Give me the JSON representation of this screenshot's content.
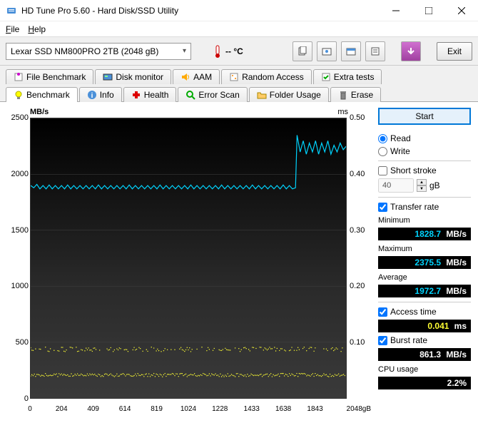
{
  "window": {
    "title": "HD Tune Pro 5.60 - Hard Disk/SSD Utility"
  },
  "menubar": {
    "file": "File",
    "help": "Help"
  },
  "toolbar": {
    "device": "Lexar SSD NM800PRO 2TB (2048 gB)",
    "temp": "-- °C",
    "exit": "Exit"
  },
  "tabs_row1": [
    {
      "label": "File Benchmark",
      "icon": "file-bench"
    },
    {
      "label": "Disk monitor",
      "icon": "monitor"
    },
    {
      "label": "AAM",
      "icon": "speaker"
    },
    {
      "label": "Random Access",
      "icon": "random"
    },
    {
      "label": "Extra tests",
      "icon": "extra"
    }
  ],
  "tabs_row2": [
    {
      "label": "Benchmark",
      "icon": "bulb",
      "active": true
    },
    {
      "label": "Info",
      "icon": "info"
    },
    {
      "label": "Health",
      "icon": "health"
    },
    {
      "label": "Error Scan",
      "icon": "search"
    },
    {
      "label": "Folder Usage",
      "icon": "folder"
    },
    {
      "label": "Erase",
      "icon": "trash"
    }
  ],
  "chart": {
    "ylabel_left": "MB/s",
    "ylabel_right": "ms",
    "y_left_max": 2500,
    "y_left_step": 500,
    "y_left_min": 0,
    "y_left_ticks": [
      2500,
      2000,
      1500,
      1000,
      500,
      0
    ],
    "y_right_ticks": [
      "0.50",
      "0.40",
      "0.30",
      "0.20",
      "0.10"
    ],
    "x_ticks": [
      0,
      204,
      409,
      614,
      819,
      1024,
      1228,
      1433,
      1638,
      1843
    ],
    "x_max": 2048,
    "x_unit": "2048gB",
    "transfer_color": "#00d4ff",
    "access_color": "#ffff33",
    "transfer_series": [
      [
        0,
        1900
      ],
      [
        20,
        1880
      ],
      [
        40,
        1910
      ],
      [
        60,
        1870
      ],
      [
        80,
        1900
      ],
      [
        100,
        1870
      ],
      [
        120,
        1905
      ],
      [
        140,
        1870
      ],
      [
        160,
        1900
      ],
      [
        180,
        1870
      ],
      [
        200,
        1900
      ],
      [
        220,
        1870
      ],
      [
        240,
        1905
      ],
      [
        260,
        1870
      ],
      [
        280,
        1900
      ],
      [
        300,
        1870
      ],
      [
        320,
        1900
      ],
      [
        340,
        1870
      ],
      [
        360,
        1900
      ],
      [
        380,
        1870
      ],
      [
        400,
        1900
      ],
      [
        420,
        1870
      ],
      [
        440,
        1905
      ],
      [
        460,
        1870
      ],
      [
        480,
        1900
      ],
      [
        500,
        1870
      ],
      [
        520,
        1900
      ],
      [
        540,
        1870
      ],
      [
        560,
        1900
      ],
      [
        580,
        1870
      ],
      [
        600,
        1900
      ],
      [
        620,
        1870
      ],
      [
        640,
        1905
      ],
      [
        660,
        1870
      ],
      [
        680,
        1900
      ],
      [
        700,
        1870
      ],
      [
        720,
        1900
      ],
      [
        740,
        1870
      ],
      [
        760,
        1900
      ],
      [
        780,
        1870
      ],
      [
        800,
        1900
      ],
      [
        820,
        1870
      ],
      [
        840,
        1905
      ],
      [
        860,
        1870
      ],
      [
        880,
        1900
      ],
      [
        900,
        1870
      ],
      [
        920,
        1900
      ],
      [
        940,
        1870
      ],
      [
        960,
        1900
      ],
      [
        980,
        1870
      ],
      [
        1000,
        1900
      ],
      [
        1020,
        1870
      ],
      [
        1040,
        1905
      ],
      [
        1060,
        1870
      ],
      [
        1080,
        1900
      ],
      [
        1100,
        1870
      ],
      [
        1120,
        1900
      ],
      [
        1140,
        1870
      ],
      [
        1160,
        1900
      ],
      [
        1180,
        1870
      ],
      [
        1200,
        1900
      ],
      [
        1220,
        1870
      ],
      [
        1240,
        1905
      ],
      [
        1260,
        1870
      ],
      [
        1280,
        1900
      ],
      [
        1300,
        1870
      ],
      [
        1320,
        1900
      ],
      [
        1340,
        1870
      ],
      [
        1360,
        1900
      ],
      [
        1380,
        1870
      ],
      [
        1400,
        1900
      ],
      [
        1420,
        1870
      ],
      [
        1440,
        1905
      ],
      [
        1460,
        1870
      ],
      [
        1480,
        1900
      ],
      [
        1500,
        1870
      ],
      [
        1520,
        1900
      ],
      [
        1540,
        1870
      ],
      [
        1560,
        1900
      ],
      [
        1580,
        1870
      ],
      [
        1600,
        1900
      ],
      [
        1620,
        1870
      ],
      [
        1640,
        1905
      ],
      [
        1660,
        1870
      ],
      [
        1680,
        1900
      ],
      [
        1700,
        1870
      ],
      [
        1720,
        1880
      ],
      [
        1730,
        2350
      ],
      [
        1750,
        2200
      ],
      [
        1770,
        2300
      ],
      [
        1790,
        2180
      ],
      [
        1810,
        2280
      ],
      [
        1830,
        2200
      ],
      [
        1850,
        2300
      ],
      [
        1870,
        2180
      ],
      [
        1890,
        2280
      ],
      [
        1910,
        2200
      ],
      [
        1930,
        2300
      ],
      [
        1950,
        2180
      ],
      [
        1970,
        2260
      ],
      [
        1990,
        2200
      ],
      [
        2010,
        2280
      ],
      [
        2030,
        2220
      ],
      [
        2048,
        2250
      ]
    ],
    "access_points_y": [
      0.087,
      0.091,
      0.085,
      0.093,
      0.088,
      0.09,
      0.086,
      0.092,
      0.089,
      0.087,
      0.091,
      0.085,
      0.093,
      0.088,
      0.09,
      0.086,
      0.092,
      0.089,
      0.087,
      0.091
    ],
    "access_band2_y": [
      0.041,
      0.043,
      0.039,
      0.044,
      0.04,
      0.042,
      0.038,
      0.045,
      0.041,
      0.043,
      0.039,
      0.044,
      0.04,
      0.042,
      0.038,
      0.045,
      0.041,
      0.043,
      0.039,
      0.044
    ]
  },
  "sidebar": {
    "start": "Start",
    "read": "Read",
    "write": "Write",
    "short_stroke": "Short stroke",
    "stroke_value": "40",
    "stroke_unit": "gB",
    "transfer_rate": "Transfer rate",
    "minimum_label": "Minimum",
    "minimum_val": "1828.7",
    "minimum_unit": "MB/s",
    "minimum_color": "#00d4ff",
    "maximum_label": "Maximum",
    "maximum_val": "2375.5",
    "maximum_unit": "MB/s",
    "maximum_color": "#00d4ff",
    "average_label": "Average",
    "average_val": "1972.7",
    "average_unit": "MB/s",
    "average_color": "#00d4ff",
    "access_time": "Access time",
    "access_val": "0.041",
    "access_unit": "ms",
    "access_color": "#ffff33",
    "burst_rate": "Burst rate",
    "burst_val": "861.3",
    "burst_unit": "MB/s",
    "burst_color": "#ffffff",
    "cpu_usage": "CPU usage",
    "cpu_val": "2.2",
    "cpu_unit": "%",
    "cpu_color": "#ffffff"
  }
}
